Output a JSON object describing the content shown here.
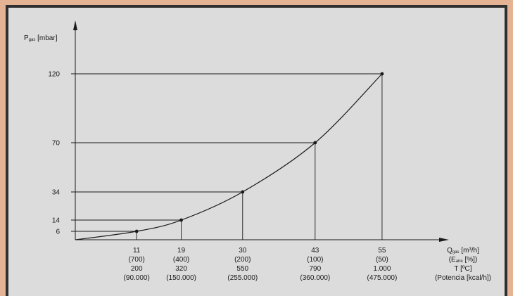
{
  "chart_data": {
    "type": "line",
    "ylabel": "P",
    "ylabel_sub": "gas",
    "ylabel_unit": " [mbar]",
    "xlabel_rows": [
      {
        "main": "Q",
        "sub": "gas",
        "rest": " [m³/h]"
      },
      {
        "main": "(E",
        "sub": "aire",
        "rest": " [%])"
      },
      {
        "main": "T [ºC]",
        "sub": "",
        "rest": ""
      },
      {
        "main": "(Potencia [kcal/h])",
        "sub": "",
        "rest": ""
      }
    ],
    "y_ticks": [
      6,
      14,
      34,
      70,
      120
    ],
    "ylim": [
      0,
      140
    ],
    "xlim": [
      0,
      62
    ],
    "grid": false,
    "points": [
      {
        "x": 11,
        "y": 6,
        "labels": [
          "11",
          "(700)",
          "200",
          "(90.000)"
        ]
      },
      {
        "x": 19,
        "y": 14,
        "labels": [
          "19",
          "(400)",
          "320",
          "(150.000)"
        ]
      },
      {
        "x": 30,
        "y": 34,
        "labels": [
          "30",
          "(200)",
          "550",
          "(255.000)"
        ]
      },
      {
        "x": 43,
        "y": 70,
        "labels": [
          "43",
          "(100)",
          "790",
          "(360.000)"
        ]
      },
      {
        "x": 55,
        "y": 120,
        "labels": [
          "55",
          "(50)",
          "1.000",
          "(475.000)"
        ]
      }
    ],
    "colors": {
      "line": "#1a1a1a",
      "background": "#dcdcdc",
      "frame": "#e3b393",
      "border": "#2f2f2f"
    }
  }
}
